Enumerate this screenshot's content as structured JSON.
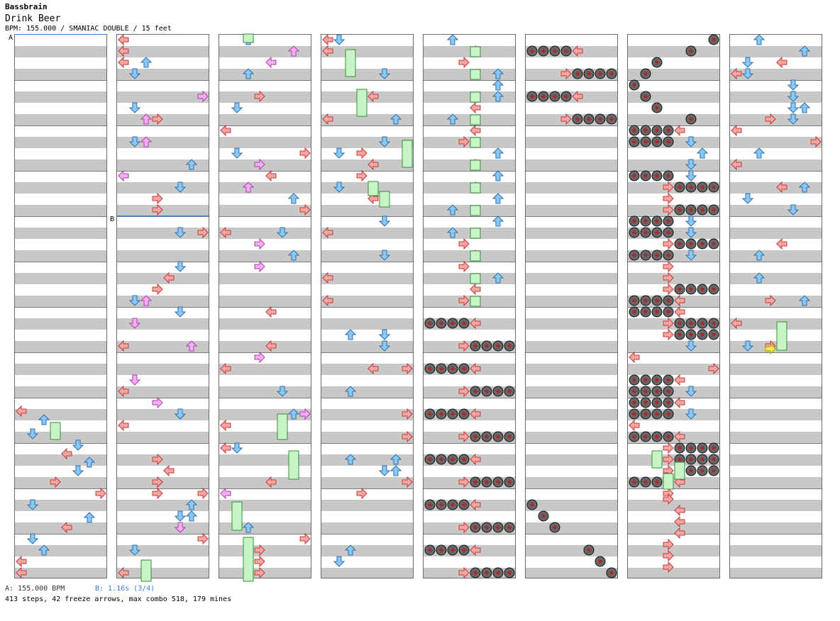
{
  "header": {
    "artist": "Bassbrain",
    "title": "Drink Beer",
    "info": "BPM: 155.000 / SMANIAC DOUBLE / 15 feet"
  },
  "markers": {
    "a_label": "A",
    "b_label": "B"
  },
  "footer": {
    "bpm": "A: 155.000 BPM",
    "stop": "B: 1.16s (3/4)",
    "stats": "413 steps, 42 freeze arrows, max combo 518, 179 mines"
  },
  "colors": {
    "red_arrow": "#f6a5a5",
    "blue_arrow": "#8ec7f5",
    "pink_arrow": "#f5b0f5",
    "freeze": "#c8f5c8",
    "mine_ring": "#444444",
    "mine_core": "#b22222",
    "section_line": "#3b7dd8"
  },
  "chart_data": {
    "type": "step-chart",
    "columns": 8,
    "measures_per_column": 12,
    "lanes": [
      "left",
      "down",
      "up",
      "right",
      "left",
      "down",
      "up",
      "right"
    ]
  }
}
